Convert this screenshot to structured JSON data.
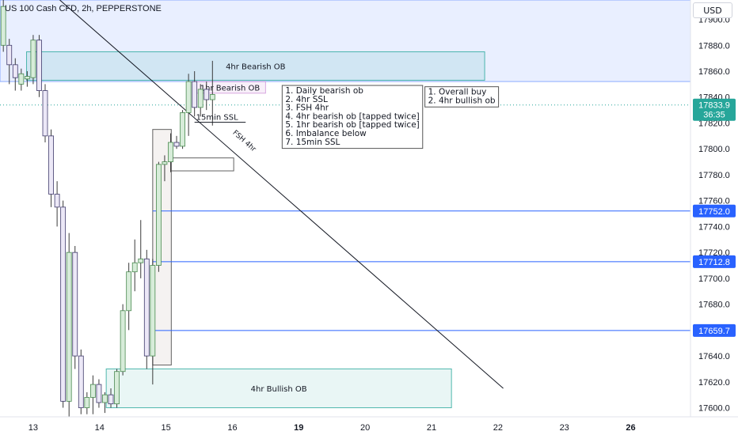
{
  "header": {
    "title": "US 100 Cash CFD, 2h, PEPPERSTONE",
    "currency": "USD"
  },
  "colors": {
    "zone_blue": "#2962ff",
    "bull_body": "#d7ecd9",
    "bull_border": "#4a8a50",
    "bear_body": "#ece8f7",
    "bear_border": "#3f3a6b",
    "wick": "#3a3a3a",
    "level_line": "#2962ff",
    "price_tag": "#26a69a"
  },
  "chart_data": {
    "type": "candlestick",
    "y_axis": {
      "ticks": [
        17900,
        17880,
        17860,
        17840,
        17820,
        17800,
        17780,
        17760,
        17740,
        17720,
        17700,
        17680,
        17660,
        17640,
        17620,
        17600
      ],
      "range": [
        17593,
        17915
      ]
    },
    "x_axis": {
      "labels": [
        {
          "text": "13",
          "day": 13,
          "bold": false
        },
        {
          "text": "14",
          "day": 14,
          "bold": false
        },
        {
          "text": "15",
          "day": 15,
          "bold": false
        },
        {
          "text": "16",
          "day": 16,
          "bold": false
        },
        {
          "text": "19",
          "day": 17,
          "bold": true
        },
        {
          "text": "20",
          "day": 18,
          "bold": false
        },
        {
          "text": "21",
          "day": 19,
          "bold": false
        },
        {
          "text": "22",
          "day": 20,
          "bold": false
        },
        {
          "text": "23",
          "day": 21,
          "bold": false
        },
        {
          "text": "26",
          "day": 22,
          "bold": true
        }
      ],
      "range": [
        12.5,
        22.9
      ]
    },
    "candles": [
      {
        "t": 12.55,
        "o": 17880,
        "h": 17915,
        "l": 17875,
        "c": 17910
      },
      {
        "t": 12.64,
        "o": 17880,
        "h": 17885,
        "l": 17850,
        "c": 17865
      },
      {
        "t": 12.73,
        "o": 17865,
        "h": 17870,
        "l": 17845,
        "c": 17855
      },
      {
        "t": 12.82,
        "o": 17850,
        "h": 17862,
        "l": 17845,
        "c": 17858
      },
      {
        "t": 12.91,
        "o": 17854,
        "h": 17860,
        "l": 17848,
        "c": 17856
      },
      {
        "t": 13.0,
        "o": 17855,
        "h": 17888,
        "l": 17850,
        "c": 17884
      },
      {
        "t": 13.09,
        "o": 17884,
        "h": 17888,
        "l": 17840,
        "c": 17845
      },
      {
        "t": 13.18,
        "o": 17845,
        "h": 17850,
        "l": 17805,
        "c": 17810
      },
      {
        "t": 13.27,
        "o": 17810,
        "h": 17815,
        "l": 17755,
        "c": 17765
      },
      {
        "t": 13.36,
        "o": 17765,
        "h": 17775,
        "l": 17740,
        "c": 17755
      },
      {
        "t": 13.45,
        "o": 17755,
        "h": 17760,
        "l": 17600,
        "c": 17605
      },
      {
        "t": 13.54,
        "o": 17605,
        "h": 17735,
        "l": 17590,
        "c": 17720
      },
      {
        "t": 13.63,
        "o": 17720,
        "h": 17725,
        "l": 17630,
        "c": 17640
      },
      {
        "t": 13.72,
        "o": 17640,
        "h": 17645,
        "l": 17595,
        "c": 17600
      },
      {
        "t": 13.81,
        "o": 17600,
        "h": 17612,
        "l": 17595,
        "c": 17608
      },
      {
        "t": 13.9,
        "o": 17608,
        "h": 17625,
        "l": 17595,
        "c": 17618
      },
      {
        "t": 13.99,
        "o": 17618,
        "h": 17622,
        "l": 17600,
        "c": 17604
      },
      {
        "t": 14.08,
        "o": 17604,
        "h": 17612,
        "l": 17596,
        "c": 17610
      },
      {
        "t": 14.17,
        "o": 17610,
        "h": 17615,
        "l": 17600,
        "c": 17603
      },
      {
        "t": 14.26,
        "o": 17603,
        "h": 17630,
        "l": 17600,
        "c": 17628
      },
      {
        "t": 14.35,
        "o": 17628,
        "h": 17680,
        "l": 17625,
        "c": 17675
      },
      {
        "t": 14.44,
        "o": 17675,
        "h": 17712,
        "l": 17660,
        "c": 17705
      },
      {
        "t": 14.53,
        "o": 17705,
        "h": 17730,
        "l": 17690,
        "c": 17712
      },
      {
        "t": 14.62,
        "o": 17712,
        "h": 17745,
        "l": 17700,
        "c": 17715
      },
      {
        "t": 14.71,
        "o": 17715,
        "h": 17722,
        "l": 17630,
        "c": 17640
      },
      {
        "t": 14.8,
        "o": 17640,
        "h": 17715,
        "l": 17618,
        "c": 17710
      },
      {
        "t": 14.89,
        "o": 17710,
        "h": 17790,
        "l": 17705,
        "c": 17788
      },
      {
        "t": 14.98,
        "o": 17788,
        "h": 17795,
        "l": 17775,
        "c": 17790
      },
      {
        "t": 15.07,
        "o": 17790,
        "h": 17812,
        "l": 17782,
        "c": 17805
      },
      {
        "t": 15.16,
        "o": 17805,
        "h": 17810,
        "l": 17800,
        "c": 17802
      },
      {
        "t": 15.25,
        "o": 17802,
        "h": 17830,
        "l": 17800,
        "c": 17828
      },
      {
        "t": 15.34,
        "o": 17828,
        "h": 17858,
        "l": 17810,
        "c": 17852
      },
      {
        "t": 15.43,
        "o": 17852,
        "h": 17860,
        "l": 17825,
        "c": 17832
      },
      {
        "t": 15.52,
        "o": 17832,
        "h": 17850,
        "l": 17825,
        "c": 17846
      },
      {
        "t": 15.61,
        "o": 17846,
        "h": 17852,
        "l": 17830,
        "c": 17838
      },
      {
        "t": 15.7,
        "o": 17838,
        "h": 17868,
        "l": 17818,
        "c": 17842
      }
    ],
    "zones": [
      {
        "label": "",
        "x0": 12.5,
        "x1": 22.9,
        "y0": 17852,
        "y1": 17915,
        "color": "#2962ff",
        "opacity": 0.1,
        "border": "#2962ff",
        "dashed": false
      },
      {
        "label": "4hr Bearish OB",
        "x0": 12.9,
        "x1": 19.8,
        "y0": 17853,
        "y1": 17875,
        "color": "#26a69a",
        "opacity": 0.12,
        "border": "#26a69a",
        "dashed": false
      },
      {
        "label": "1hr Bearish OB",
        "x0": 15.43,
        "x1": 16.5,
        "y0": 17843,
        "y1": 17852,
        "color": "#ce93d8",
        "opacity": 0.15,
        "border": "#ce93d8",
        "dashed": false
      },
      {
        "label": "",
        "x0": 14.8,
        "x1": 15.08,
        "y0": 17633,
        "y1": 17815,
        "color": "#d7ccc8",
        "opacity": 0.25,
        "border": "#3a3a3a",
        "dashed": false
      },
      {
        "label": "",
        "x0": 15.08,
        "x1": 16.02,
        "y0": 17783,
        "y1": 17793,
        "color": "#ffffff",
        "opacity": 1.0,
        "border": "#3a3a3a",
        "dashed": false
      },
      {
        "label": "4hr Bullish OB",
        "x0": 14.1,
        "x1": 19.3,
        "y0": 17600,
        "y1": 17630,
        "color": "#26a69a",
        "opacity": 0.1,
        "border": "#26a69a",
        "dashed": false
      }
    ],
    "hlines": [
      {
        "price": 17752.0,
        "label": "17752.0",
        "x0": 14.8,
        "color": "#2962ff"
      },
      {
        "price": 17712.8,
        "label": "17712.8",
        "x0": 14.8,
        "color": "#2962ff"
      },
      {
        "price": 17659.7,
        "label": "17659.7",
        "x0": 14.8,
        "color": "#2962ff"
      }
    ],
    "current_price": {
      "value": 17833.9,
      "label": "17833.9",
      "countdown": "36:35",
      "dotted": true
    },
    "trendline": {
      "x0": 13.4,
      "y0": 17915,
      "x1": 20.08,
      "y1": 17615,
      "label": "FSH 4hr",
      "label_x": 16.0,
      "label_y": 17812
    },
    "ssl": {
      "label": "15min SSL",
      "x0": 15.43,
      "x1": 16.2,
      "y": 17823
    },
    "notes": [
      {
        "lines": [
          "1. Daily bearish ob",
          "2. 4hr SSL",
          "3. FSH 4hr",
          "4. 4hr bearish ob [tapped twice]",
          "5. 1hr bearish ob [tapped twice]",
          "6. Imbalance below",
          "7. 15min SSL"
        ],
        "x": 16.75,
        "y": 17849
      },
      {
        "lines": [
          "1. Overall buy",
          "2. 4hr bullish ob"
        ],
        "x": 18.9,
        "y": 17848
      }
    ]
  }
}
